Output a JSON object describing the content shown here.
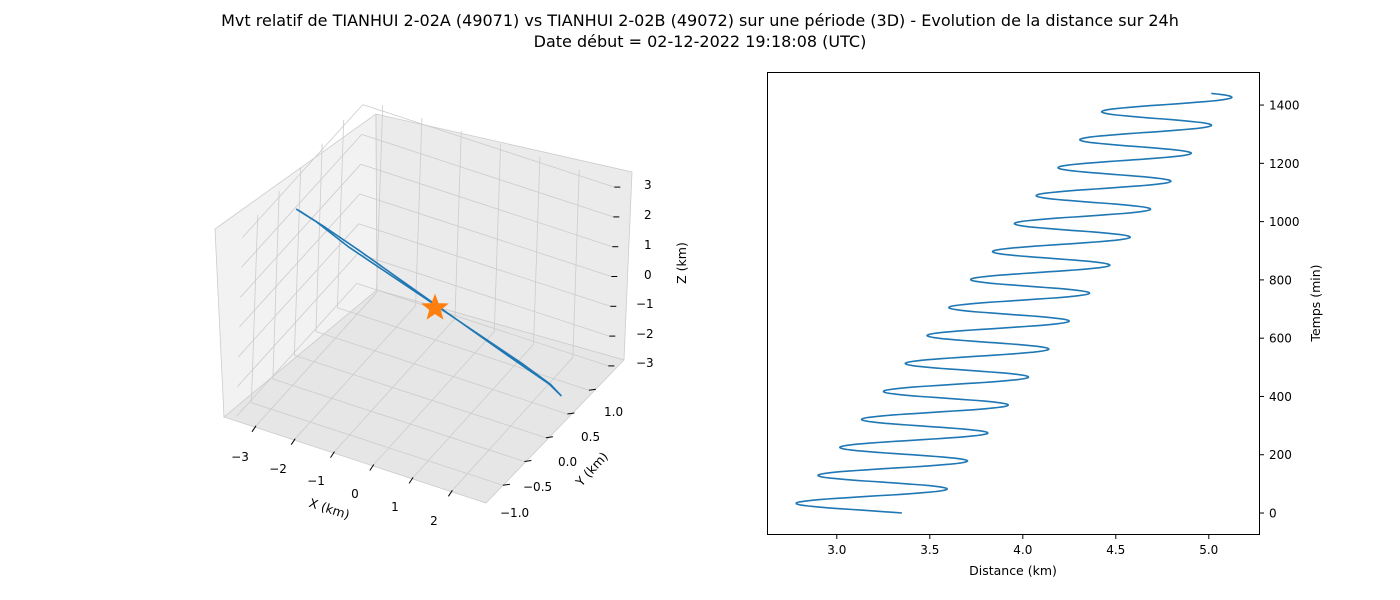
{
  "title_line1": "Mvt relatif de TIANHUI 2-02A (49071) vs TIANHUI 2-02B (49072) sur une période (3D) - Evolution de la distance sur 24h",
  "title_line2": "Date début = 02-12-2022 19:18:08 (UTC)",
  "colors": {
    "line": "#1f77b4",
    "marker": "#ff7f0e",
    "pane": "#f2f2f2",
    "grid": "#cccccc"
  },
  "chart_data": [
    {
      "type": "line",
      "projection": "3d",
      "xlabel": "X (km)",
      "ylabel": "Y (km)",
      "zlabel": "Z (km)",
      "xticks": [
        "−3",
        "−2",
        "−1",
        "0",
        "1",
        "2"
      ],
      "yticks": [
        "−1.0",
        "−0.5",
        "0.0",
        "0.5",
        "1.0"
      ],
      "zticks": [
        "−3",
        "−2",
        "−1",
        "0",
        "1",
        "2",
        "3"
      ],
      "grid": true,
      "series": [
        {
          "type": "closed-orbit",
          "x": [
            -2.9,
            -2.5,
            -1.8,
            -0.9,
            0.0,
            0.9,
            1.8,
            2.4,
            2.6,
            2.3,
            1.6,
            0.8,
            0.0,
            -0.8,
            -1.6,
            -2.3,
            -2.8,
            -2.9
          ],
          "y": [
            -0.65,
            -0.55,
            -0.4,
            -0.2,
            0.0,
            0.2,
            0.4,
            0.55,
            0.62,
            0.6,
            0.45,
            0.25,
            0.05,
            -0.15,
            -0.35,
            -0.5,
            -0.6,
            -0.65
          ],
          "z": [
            3.1,
            2.7,
            1.9,
            1.0,
            0.1,
            -0.8,
            -1.7,
            -2.4,
            -2.8,
            -2.5,
            -1.8,
            -0.9,
            0.0,
            0.9,
            1.8,
            2.5,
            2.95,
            3.1
          ]
        }
      ],
      "marker": {
        "shape": "star",
        "x": 0,
        "y": 0,
        "z": 0
      }
    },
    {
      "type": "line",
      "xlabel": "Distance (km)",
      "ylabel": "Temps (min)",
      "xlim": [
        2.63,
        5.27
      ],
      "ylim": [
        -72,
        1510
      ],
      "xticks": [
        3.0,
        3.5,
        4.0,
        4.5,
        5.0
      ],
      "xtick_labels": [
        "3.0",
        "3.5",
        "4.0",
        "4.5",
        "5.0"
      ],
      "yticks": [
        0,
        200,
        400,
        600,
        800,
        1000,
        1200,
        1400
      ],
      "yaxis_side": "right",
      "grid": false,
      "wave": {
        "t_start": 0,
        "t_end": 1440,
        "period_min": 96,
        "min_start": 2.74,
        "min_end": 4.5,
        "max_start": 3.5,
        "max_end": 5.14,
        "d_start": 2.89,
        "d_end": 4.5
      }
    }
  ]
}
